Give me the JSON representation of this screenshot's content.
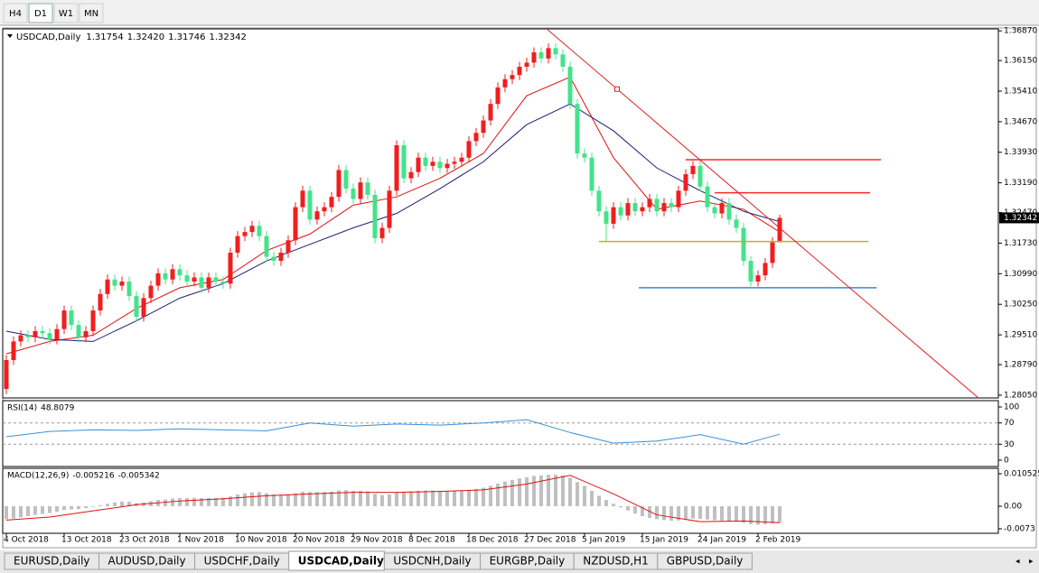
{
  "toolbar": {
    "buttons": [
      "H4",
      "D1",
      "W1",
      "MN"
    ],
    "active": 1
  },
  "tabs": {
    "items": [
      "EURUSD,Daily",
      "AUDUSD,Daily",
      "USDCHF,Daily",
      "USDCAD,Daily",
      "USDCNH,Daily",
      "EURGBP,Daily",
      "NZDUSD,H1",
      "GBPUSD,Daily"
    ],
    "active": 3
  },
  "chart_data": [
    {
      "type": "candlestick",
      "title": "USDCAD,Daily",
      "ohlc_labels": [
        "1.31754",
        "1.32420",
        "1.31746",
        "1.32342"
      ],
      "up_color": "#f01e1e",
      "down_color": "#44e38a",
      "categories": [
        "4 Oct 2018",
        null,
        null,
        null,
        null,
        null,
        null,
        null,
        "13 Oct 2018",
        null,
        null,
        null,
        null,
        null,
        null,
        null,
        "23 Oct 2018",
        null,
        null,
        null,
        null,
        null,
        null,
        null,
        "1 Nov 2018",
        null,
        null,
        null,
        null,
        null,
        null,
        null,
        "10 Nov 2018",
        null,
        null,
        null,
        null,
        null,
        null,
        null,
        "20 Nov 2018",
        null,
        null,
        null,
        null,
        null,
        null,
        null,
        "29 Nov 2018",
        null,
        null,
        null,
        null,
        null,
        null,
        null,
        "8 Dec 2018",
        null,
        null,
        null,
        null,
        null,
        null,
        null,
        "18 Dec 2018",
        null,
        null,
        null,
        null,
        null,
        null,
        null,
        "27 Dec 2018",
        null,
        null,
        null,
        null,
        null,
        null,
        null,
        "5 Jan 2019",
        null,
        null,
        null,
        null,
        null,
        null,
        null,
        "15 Jan 2019",
        null,
        null,
        null,
        null,
        null,
        null,
        null,
        "24 Jan 2019",
        null,
        null,
        null,
        null,
        null,
        null,
        null,
        "2 Feb 2019",
        null,
        null,
        null
      ],
      "open": [
        1.282,
        1.289,
        1.2935,
        1.295,
        1.2945,
        1.296,
        1.2955,
        1.294,
        1.2965,
        1.301,
        1.2975,
        1.2945,
        1.296,
        1.301,
        1.305,
        1.3085,
        1.307,
        1.308,
        1.3045,
        1.2995,
        1.304,
        1.307,
        1.31,
        1.3085,
        1.311,
        1.3095,
        1.308,
        1.309,
        1.3065,
        1.309,
        1.308,
        1.3075,
        1.315,
        1.319,
        1.32,
        1.3215,
        1.319,
        1.314,
        1.313,
        1.315,
        1.318,
        1.326,
        1.33,
        1.323,
        1.325,
        1.326,
        1.3285,
        1.335,
        1.3305,
        1.328,
        1.332,
        1.329,
        1.3185,
        1.321,
        1.33,
        1.341,
        1.333,
        1.3345,
        1.338,
        1.336,
        1.337,
        1.3355,
        1.3365,
        1.337,
        1.338,
        1.342,
        1.344,
        1.347,
        1.351,
        1.355,
        1.357,
        1.358,
        1.36,
        1.361,
        1.3635,
        1.362,
        1.3645,
        1.363,
        1.36,
        1.351,
        1.339,
        1.338,
        1.33,
        1.325,
        1.322,
        1.326,
        1.324,
        1.327,
        1.325,
        1.326,
        1.328,
        1.325,
        1.327,
        1.326,
        1.33,
        1.334,
        1.336,
        1.331,
        1.326,
        1.3245,
        1.327,
        1.323,
        1.321,
        1.313,
        1.308,
        1.3095,
        1.3125,
        1.31754
      ],
      "high": [
        1.2902,
        1.2947,
        1.2962,
        1.2962,
        1.2972,
        1.2972,
        1.2967,
        1.2977,
        1.3022,
        1.3022,
        1.2987,
        1.2972,
        1.3022,
        1.3062,
        1.3097,
        1.3097,
        1.3092,
        1.3092,
        1.3057,
        1.3052,
        1.3082,
        1.3112,
        1.3112,
        1.3122,
        1.3122,
        1.3107,
        1.3102,
        1.3102,
        1.3102,
        1.3102,
        1.3092,
        1.3162,
        1.3202,
        1.3212,
        1.3227,
        1.3227,
        1.3202,
        1.3152,
        1.3162,
        1.3192,
        1.3272,
        1.3312,
        1.3312,
        1.3262,
        1.3272,
        1.3297,
        1.3362,
        1.3362,
        1.3317,
        1.3332,
        1.3332,
        1.3302,
        1.3222,
        1.3312,
        1.3422,
        1.3422,
        1.3357,
        1.3392,
        1.3392,
        1.3382,
        1.3382,
        1.3377,
        1.3382,
        1.3392,
        1.3432,
        1.3452,
        1.3482,
        1.3522,
        1.3562,
        1.3582,
        1.3592,
        1.3612,
        1.3622,
        1.3647,
        1.3647,
        1.3657,
        1.3657,
        1.3642,
        1.3612,
        1.3522,
        1.3402,
        1.3392,
        1.3312,
        1.3262,
        1.3272,
        1.3272,
        1.3282,
        1.3282,
        1.3272,
        1.3292,
        1.3292,
        1.3282,
        1.3282,
        1.3312,
        1.3352,
        1.3372,
        1.3372,
        1.3322,
        1.3272,
        1.3282,
        1.3282,
        1.3242,
        1.3222,
        1.3142,
        1.3107,
        1.3137,
        1.3187,
        1.3242
      ],
      "low": [
        1.2808,
        1.2878,
        1.2923,
        1.2933,
        1.2933,
        1.2943,
        1.2928,
        1.2928,
        1.2953,
        1.2963,
        1.2933,
        1.2933,
        1.2948,
        1.2998,
        1.3038,
        1.3058,
        1.3058,
        1.3033,
        1.2983,
        1.2983,
        1.3028,
        1.3058,
        1.3073,
        1.3073,
        1.3083,
        1.3068,
        1.3068,
        1.3053,
        1.3053,
        1.3068,
        1.3063,
        1.3063,
        1.3138,
        1.3178,
        1.3188,
        1.3178,
        1.3128,
        1.3118,
        1.3118,
        1.3138,
        1.3168,
        1.3248,
        1.3218,
        1.3218,
        1.3238,
        1.3248,
        1.3273,
        1.3293,
        1.3268,
        1.3268,
        1.3278,
        1.3173,
        1.3173,
        1.3198,
        1.3288,
        1.3318,
        1.3318,
        1.3333,
        1.3348,
        1.3348,
        1.3343,
        1.3343,
        1.3353,
        1.3358,
        1.3368,
        1.3408,
        1.3428,
        1.3458,
        1.3498,
        1.3538,
        1.3558,
        1.3568,
        1.3588,
        1.3598,
        1.3608,
        1.3608,
        1.3618,
        1.3588,
        1.3498,
        1.3378,
        1.3368,
        1.3288,
        1.3238,
        1.3175,
        1.3208,
        1.3228,
        1.3228,
        1.3238,
        1.3238,
        1.3248,
        1.3238,
        1.3238,
        1.3248,
        1.3248,
        1.3288,
        1.3328,
        1.3298,
        1.3248,
        1.3233,
        1.3233,
        1.3218,
        1.3198,
        1.3118,
        1.3068,
        1.3068,
        1.3083,
        1.3113,
        1.31746
      ],
      "close": [
        1.289,
        1.2935,
        1.295,
        1.2945,
        1.296,
        1.2955,
        1.294,
        1.2965,
        1.301,
        1.2975,
        1.2945,
        1.296,
        1.301,
        1.305,
        1.3085,
        1.307,
        1.308,
        1.3045,
        1.2995,
        1.304,
        1.307,
        1.31,
        1.3085,
        1.311,
        1.3095,
        1.308,
        1.309,
        1.3065,
        1.309,
        1.308,
        1.3075,
        1.315,
        1.319,
        1.32,
        1.3215,
        1.319,
        1.314,
        1.313,
        1.315,
        1.318,
        1.326,
        1.33,
        1.323,
        1.325,
        1.326,
        1.3285,
        1.335,
        1.3305,
        1.328,
        1.332,
        1.329,
        1.3185,
        1.321,
        1.33,
        1.341,
        1.333,
        1.3345,
        1.338,
        1.336,
        1.337,
        1.3355,
        1.3365,
        1.337,
        1.338,
        1.342,
        1.344,
        1.347,
        1.351,
        1.355,
        1.357,
        1.358,
        1.36,
        1.361,
        1.3635,
        1.362,
        1.3645,
        1.363,
        1.36,
        1.351,
        1.339,
        1.338,
        1.33,
        1.325,
        1.322,
        1.326,
        1.324,
        1.327,
        1.325,
        1.326,
        1.328,
        1.325,
        1.327,
        1.326,
        1.33,
        1.334,
        1.336,
        1.331,
        1.326,
        1.3245,
        1.327,
        1.323,
        1.321,
        1.313,
        1.308,
        1.3095,
        1.3125,
        1.3175,
        1.32342
      ],
      "lines": [
        {
          "color": "#e01010",
          "x": [
            0,
            6,
            12,
            18,
            24,
            30,
            36,
            42,
            48,
            54,
            60,
            66,
            72,
            78,
            84,
            90,
            96,
            102,
            107
          ],
          "values": [
            1.2905,
            1.2935,
            1.295,
            1.3015,
            1.3065,
            1.3085,
            1.3155,
            1.3195,
            1.3265,
            1.3285,
            1.333,
            1.339,
            1.353,
            1.3575,
            1.338,
            1.3255,
            1.3275,
            1.3255,
            1.32
          ]
        },
        {
          "color": "#1c1c7a",
          "x": [
            0,
            6,
            12,
            18,
            24,
            30,
            36,
            42,
            48,
            54,
            60,
            66,
            72,
            78,
            84,
            90,
            96,
            102,
            107
          ],
          "values": [
            1.296,
            1.294,
            1.2935,
            1.2985,
            1.304,
            1.3075,
            1.313,
            1.317,
            1.321,
            1.3245,
            1.3305,
            1.337,
            1.346,
            1.351,
            1.3445,
            1.3355,
            1.33,
            1.325,
            1.3225
          ]
        }
      ],
      "levels": [
        {
          "value": 1.3375,
          "color": "#ff2828",
          "from": 94,
          "to": 121
        },
        {
          "value": 1.3295,
          "color": "#ff2828",
          "from": 98,
          "to": 119.5
        },
        {
          "value": 1.3177,
          "color": "#b5b520",
          "from": 82,
          "to": 119.3
        },
        {
          "value": 1.3065,
          "color": "#3a8ad0",
          "from": 87.5,
          "to": 120.4
        }
      ],
      "trendline": {
        "color": "#e02020",
        "points": [
          [
            73.6,
            1.3709
          ],
          [
            84.5,
            1.3546
          ]
        ]
      },
      "ylim": [
        1.27983,
        1.36917
      ],
      "yticks": [
        {
          "value": 1.3687,
          "label": "1.36870"
        },
        {
          "value": 1.3615,
          "label": "1.36150"
        },
        {
          "value": 1.3541,
          "label": "1.35410"
        },
        {
          "value": 1.3467,
          "label": "1.34670"
        },
        {
          "value": 1.3393,
          "label": "1.33930"
        },
        {
          "value": 1.3319,
          "label": "1.33190"
        },
        {
          "value": 1.3247,
          "label": "1.32470"
        },
        {
          "value": 1.3173,
          "label": "1.31730"
        },
        {
          "value": 1.3099,
          "label": "1.30990"
        },
        {
          "value": 1.3025,
          "label": "1.30250"
        },
        {
          "value": 1.2951,
          "label": "1.29510"
        },
        {
          "value": 1.2879,
          "label": "1.28790"
        },
        {
          "value": 1.2805,
          "label": "1.28050"
        }
      ]
    },
    {
      "type": "line",
      "title": "RSI(14)",
      "color": "#3c8fd6",
      "x": [
        0,
        6,
        12,
        18,
        24,
        30,
        36,
        42,
        48,
        54,
        60,
        66,
        72,
        78,
        84,
        90,
        96,
        102,
        107
      ],
      "values": [
        44,
        54,
        57,
        56,
        59,
        57,
        55,
        70,
        64,
        68,
        66,
        70,
        76,
        52,
        32,
        36,
        48,
        30,
        48.8079
      ],
      "levels": [
        70,
        30
      ],
      "ylim": [
        -11.9,
        111.9
      ],
      "yticks": [
        100,
        70,
        30,
        0
      ]
    },
    {
      "type": "macd",
      "title": "MACD(12,26,9)",
      "hist_color": "#c0c0c0",
      "signal_color": "#e01010",
      "histogram": [
        -0.0042,
        -0.004,
        -0.0036,
        -0.0032,
        -0.0028,
        -0.0025,
        -0.0022,
        -0.0018,
        -0.0012,
        -0.001,
        -0.0009,
        -0.0006,
        -0.0002,
        0.0003,
        0.0008,
        0.0012,
        0.0015,
        0.0014,
        0.001,
        0.0012,
        0.0016,
        0.002,
        0.0022,
        0.0025,
        0.0026,
        0.0026,
        0.0027,
        0.0026,
        0.0027,
        0.0027,
        0.0027,
        0.0032,
        0.0038,
        0.0042,
        0.0045,
        0.0046,
        0.0042,
        0.0038,
        0.0036,
        0.0037,
        0.0042,
        0.0047,
        0.0046,
        0.0046,
        0.0046,
        0.0047,
        0.0051,
        0.0052,
        0.005,
        0.005,
        0.0048,
        0.004,
        0.0036,
        0.0038,
        0.0046,
        0.0047,
        0.0048,
        0.005,
        0.0051,
        0.0051,
        0.005,
        0.005,
        0.005,
        0.005,
        0.0053,
        0.0056,
        0.006,
        0.0066,
        0.0073,
        0.008,
        0.0085,
        0.009,
        0.0094,
        0.0098,
        0.01,
        0.0102,
        0.0102,
        0.01,
        0.0092,
        0.0078,
        0.0066,
        0.005,
        0.0034,
        0.002,
        0.0008,
        -0.0004,
        -0.0014,
        -0.0024,
        -0.0032,
        -0.0038,
        -0.0042,
        -0.0045,
        -0.0047,
        -0.0046,
        -0.0043,
        -0.004,
        -0.0041,
        -0.0043,
        -0.0045,
        -0.0046,
        -0.0048,
        -0.005,
        -0.0054,
        -0.0058,
        -0.006,
        -0.0059,
        -0.0056,
        -0.005216
      ],
      "signal": {
        "x": [
          0,
          6,
          12,
          18,
          24,
          30,
          36,
          42,
          48,
          54,
          60,
          66,
          72,
          78,
          84,
          90,
          96,
          102,
          107
        ],
        "values": [
          -0.0045,
          -0.0035,
          -0.0015,
          0.0005,
          0.0017,
          0.0024,
          0.0034,
          0.004,
          0.0045,
          0.0045,
          0.0048,
          0.0053,
          0.0072,
          0.01,
          0.004,
          -0.0028,
          -0.005,
          -0.0048,
          -0.005342
        ]
      },
      "ylim": [
        -0.00877,
        0.01228
      ],
      "yticks": [
        0.010525,
        {
          "value": 0,
          "label": "0.00"
        },
        -0.0073
      ]
    }
  ]
}
